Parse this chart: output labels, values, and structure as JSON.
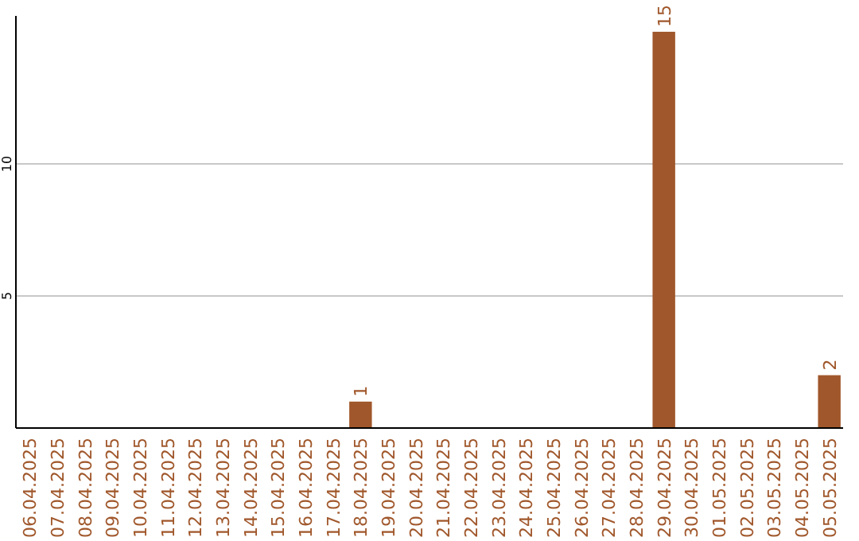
{
  "chart_data": {
    "type": "bar",
    "categories": [
      "06.04.2025",
      "07.04.2025",
      "08.04.2025",
      "09.04.2025",
      "10.04.2025",
      "11.04.2025",
      "12.04.2025",
      "13.04.2025",
      "14.04.2025",
      "15.04.2025",
      "16.04.2025",
      "17.04.2025",
      "18.04.2025",
      "19.04.2025",
      "20.04.2025",
      "21.04.2025",
      "22.04.2025",
      "23.04.2025",
      "24.04.2025",
      "25.04.2025",
      "26.04.2025",
      "27.04.2025",
      "28.04.2025",
      "29.04.2025",
      "30.04.2025",
      "01.05.2025",
      "02.05.2025",
      "03.05.2025",
      "04.05.2025",
      "05.05.2025"
    ],
    "values": [
      0,
      0,
      0,
      0,
      0,
      0,
      0,
      0,
      0,
      0,
      0,
      0,
      1,
      0,
      0,
      0,
      0,
      0,
      0,
      0,
      0,
      0,
      0,
      15,
      0,
      0,
      0,
      0,
      0,
      2
    ],
    "value_labels": [
      null,
      null,
      null,
      null,
      null,
      null,
      null,
      null,
      null,
      null,
      null,
      null,
      "1",
      null,
      null,
      null,
      null,
      null,
      null,
      null,
      null,
      null,
      null,
      "15",
      null,
      null,
      null,
      null,
      null,
      "2"
    ],
    "color": "#a0572b",
    "ylim": [
      0,
      15.6
    ],
    "yticks": [
      5,
      10
    ],
    "grid": "y"
  }
}
